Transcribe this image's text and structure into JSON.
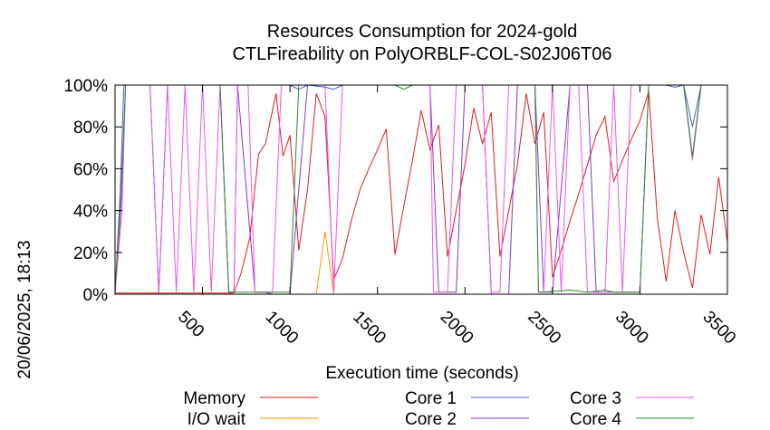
{
  "chart_data": {
    "type": "line",
    "title": "Resources Consumption for 2024-gold",
    "subtitle": "CTLFireability on PolyORBLF-COL-S02J06T06",
    "xlabel": "Execution time (seconds)",
    "ylabel": "",
    "side_label": "20/06/2025, 18:13",
    "xlim": [
      0,
      3500
    ],
    "ylim": [
      0,
      100
    ],
    "x_ticks": [
      500,
      1000,
      1500,
      2000,
      2500,
      3000,
      3500
    ],
    "y_ticks": [
      0,
      20,
      40,
      60,
      80,
      100
    ],
    "y_tick_labels": [
      "0%",
      "20%",
      "40%",
      "60%",
      "80%",
      "100%"
    ],
    "legend_position": "bottom",
    "grid": false,
    "series": [
      {
        "name": "Memory",
        "color": "#e41a1c",
        "x": [
          0,
          50,
          100,
          200,
          300,
          400,
          500,
          600,
          650,
          680,
          720,
          770,
          820,
          860,
          920,
          960,
          1000,
          1050,
          1100,
          1150,
          1200,
          1250,
          1300,
          1350,
          1400,
          1450,
          1500,
          1550,
          1600,
          1650,
          1700,
          1750,
          1800,
          1850,
          1900,
          1950,
          2000,
          2050,
          2100,
          2150,
          2200,
          2250,
          2300,
          2350,
          2400,
          2450,
          2500,
          2550,
          2600,
          2650,
          2700,
          2750,
          2800,
          2850,
          2900,
          2950,
          3000,
          3050,
          3100,
          3150,
          3200,
          3250,
          3300,
          3350,
          3400,
          3450,
          3500
        ],
        "y": [
          0.5,
          0.5,
          0.5,
          0.5,
          0.5,
          0.5,
          0.5,
          0.5,
          0.5,
          0.5,
          10,
          27,
          67,
          72,
          96,
          66,
          76,
          21,
          50,
          96,
          85,
          7,
          17,
          35,
          50,
          60,
          69,
          79,
          19,
          42,
          64,
          88,
          69,
          81,
          18,
          40,
          62,
          89,
          72,
          87,
          18,
          40,
          62,
          96,
          72,
          87,
          8,
          21,
          35,
          48,
          62,
          76,
          85,
          54,
          64,
          74,
          83,
          97,
          36,
          6,
          40,
          20,
          3,
          38,
          19,
          56,
          25
        ]
      },
      {
        "name": "I/O wait",
        "color": "#ff9900",
        "x": [
          0,
          100,
          500,
          1000,
          1150,
          1200,
          1250,
          1300,
          1500,
          2000,
          2500,
          3000,
          3500
        ],
        "y": [
          0,
          0,
          0,
          0,
          0,
          30,
          0,
          0,
          0,
          0,
          0,
          0,
          0
        ]
      },
      {
        "name": "Core 1",
        "color": "#4466cc",
        "x": [
          0,
          30,
          50,
          150,
          200,
          250,
          300,
          400,
          500,
          600,
          650,
          700,
          900,
          950,
          1000,
          1050,
          1100,
          1200,
          1250,
          1300,
          1400,
          1500,
          1700,
          1800,
          1900,
          2000,
          2200,
          2400,
          2500,
          2600,
          2800,
          3000,
          3050,
          3100,
          3150,
          3200,
          3250,
          3300,
          3350,
          3500
        ],
        "y": [
          0,
          50,
          100,
          100,
          100,
          0,
          100,
          100,
          100,
          100,
          100,
          100,
          100,
          100,
          100,
          98,
          100,
          99,
          98,
          100,
          100,
          100,
          100,
          100,
          100,
          100,
          100,
          100,
          100,
          100,
          100,
          100,
          100,
          100,
          100,
          99,
          100,
          80,
          100,
          100
        ]
      },
      {
        "name": "Core 2",
        "color": "#8833cc",
        "x": [
          0,
          40,
          60,
          100,
          150,
          200,
          300,
          400,
          500,
          600,
          650,
          680,
          700,
          800,
          850,
          900,
          950,
          1000,
          1100,
          1200,
          1250,
          1300,
          1400,
          1800,
          1850,
          1900,
          1950,
          2000,
          2100,
          2150,
          2200,
          2250,
          2300,
          2400,
          2450,
          2480,
          2500,
          2600,
          2700,
          2750,
          2800,
          2850,
          2900,
          2950,
          3000,
          3050,
          3100,
          3200,
          3250,
          3300,
          3350,
          3400,
          3500
        ],
        "y": [
          1,
          50,
          100,
          100,
          100,
          100,
          100,
          100,
          100,
          100,
          1,
          1,
          100,
          1,
          1,
          0,
          0,
          0,
          100,
          100,
          100,
          100,
          100,
          100,
          1,
          1,
          1,
          100,
          100,
          0,
          0,
          0,
          100,
          100,
          1,
          1,
          1,
          100,
          100,
          1,
          1,
          1,
          1,
          1,
          1,
          100,
          100,
          100,
          100,
          65,
          100,
          100,
          100
        ]
      },
      {
        "name": "Core 3",
        "color": "#ee55ee",
        "x": [
          0,
          40,
          60,
          100,
          150,
          200,
          250,
          300,
          350,
          400,
          450,
          500,
          550,
          600,
          650,
          680,
          700,
          760,
          800,
          850,
          900,
          950,
          1000,
          1100,
          1150,
          1200,
          1250,
          1300,
          1400,
          1500,
          1800,
          1820,
          1850,
          1900,
          1950,
          2000,
          2100,
          2150,
          2200,
          2250,
          2300,
          2400,
          2420,
          2450,
          2500,
          2550,
          2600,
          2650,
          2700,
          2800,
          2850,
          2900,
          2950,
          3000,
          3050,
          3100,
          3200,
          3250,
          3300,
          3350,
          3400,
          3500
        ],
        "y": [
          1,
          40,
          100,
          100,
          100,
          100,
          1,
          100,
          1,
          100,
          1,
          100,
          1,
          100,
          1,
          1,
          100,
          100,
          1,
          1,
          1,
          100,
          100,
          100,
          100,
          100,
          1,
          100,
          100,
          100,
          100,
          1,
          1,
          1,
          100,
          100,
          100,
          1,
          1,
          100,
          100,
          100,
          1,
          1,
          100,
          1,
          100,
          100,
          1,
          1,
          100,
          1,
          100,
          100,
          100,
          100,
          100,
          100,
          64,
          100,
          100,
          100
        ]
      },
      {
        "name": "Core 4",
        "color": "#2e8b2e",
        "x": [
          0,
          40,
          60,
          100,
          200,
          300,
          400,
          500,
          600,
          650,
          680,
          700,
          800,
          900,
          950,
          960,
          1000,
          1050,
          1100,
          1200,
          1300,
          1400,
          1500,
          1600,
          1650,
          1700,
          1800,
          1900,
          2000,
          2100,
          2200,
          2300,
          2400,
          2420,
          2440,
          2600,
          2700,
          2800,
          2850,
          2900,
          2950,
          3000,
          3050,
          3100,
          3200,
          3250,
          3300,
          3350,
          3400,
          3500
        ],
        "y": [
          1,
          60,
          100,
          100,
          100,
          100,
          100,
          100,
          100,
          1,
          1,
          1,
          1,
          1,
          1,
          1,
          1,
          100,
          100,
          100,
          100,
          100,
          100,
          100,
          98,
          100,
          100,
          100,
          100,
          100,
          100,
          100,
          100,
          1,
          1,
          2,
          1,
          2,
          1,
          1,
          1,
          1,
          100,
          100,
          100,
          100,
          66,
          100,
          100,
          100
        ]
      }
    ]
  }
}
